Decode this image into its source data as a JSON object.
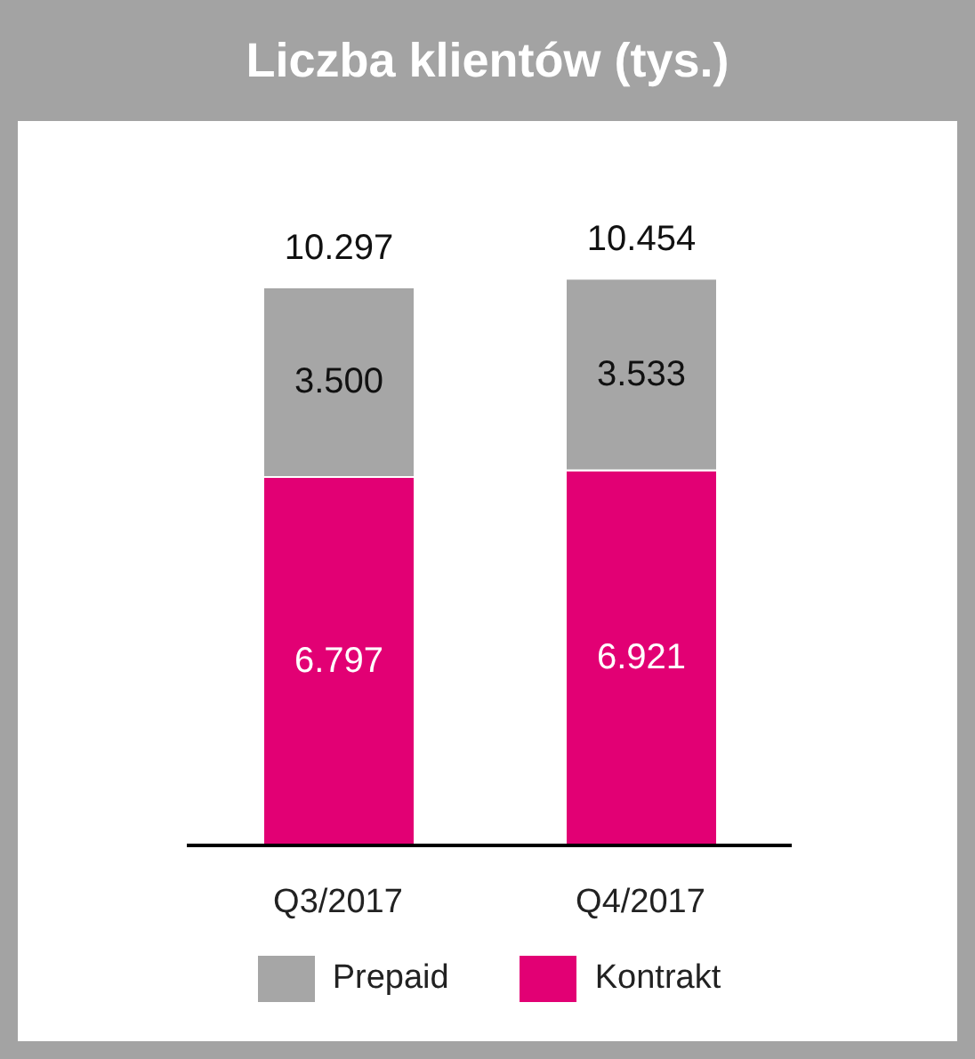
{
  "chart_data": {
    "type": "bar",
    "title": "Liczba klientów (tys.)",
    "categories": [
      "Q3/2017",
      "Q4/2017"
    ],
    "stacked": true,
    "legend": "bottom",
    "series": [
      {
        "name": "Kontrakt",
        "color": "#e20074",
        "values": [
          6797,
          6921
        ],
        "value_labels": [
          "6.797",
          "6.921"
        ]
      },
      {
        "name": "Prepaid",
        "color": "#a6a6a6",
        "values": [
          3500,
          3533
        ],
        "value_labels": [
          "3.500",
          "3.533"
        ]
      }
    ],
    "totals": [
      "10.297",
      "10.454"
    ]
  }
}
